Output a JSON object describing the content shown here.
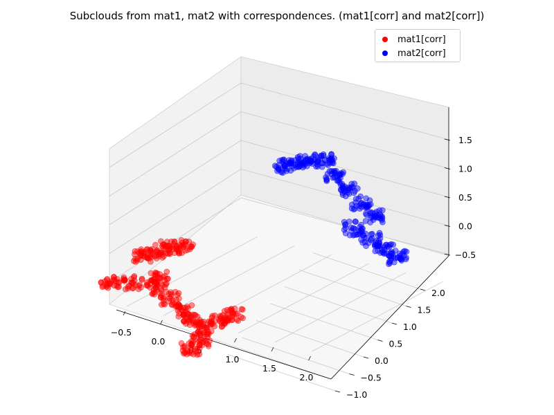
{
  "chart_data": {
    "type": "scatter",
    "title": "Subclouds from mat1, mat2 with correspondences. (mat1[corr] and mat2[corr])",
    "xlabel": "",
    "ylabel": "",
    "zlabel": "",
    "x_ticks": [
      "−0.5",
      "0.0",
      "0.5",
      "1.0",
      "1.5",
      "2.0"
    ],
    "y_ticks": [
      "−1.0",
      "−0.5",
      "0.0",
      "0.5",
      "1.0",
      "1.5",
      "2.0"
    ],
    "z_ticks": [
      "−0.5",
      "0.0",
      "0.5",
      "1.0",
      "1.5"
    ],
    "xlim": [
      -0.6,
      2.1
    ],
    "ylim": [
      -1.1,
      2.3
    ],
    "zlim": [
      -0.6,
      1.9
    ],
    "legend_position": "top-right",
    "grid": true,
    "series": [
      {
        "name": "mat1[corr]",
        "color": "#ff0000",
        "points": [
          [
            -0.15,
            -0.45,
            0.85
          ],
          [
            0.0,
            -0.4,
            0.95
          ],
          [
            0.15,
            -0.35,
            1.05
          ],
          [
            0.3,
            -0.3,
            1.1
          ],
          [
            0.1,
            -0.5,
            0.6
          ],
          [
            0.05,
            -0.5,
            0.4
          ],
          [
            -0.2,
            -0.6,
            0.45
          ],
          [
            -0.45,
            -0.7,
            0.4
          ],
          [
            0.2,
            -0.45,
            0.25
          ],
          [
            0.35,
            -0.4,
            0.05
          ],
          [
            0.45,
            -0.35,
            -0.1
          ],
          [
            0.6,
            -0.3,
            -0.2
          ],
          [
            0.75,
            -0.25,
            -0.05
          ],
          [
            0.9,
            -0.2,
            0.1
          ],
          [
            0.55,
            -0.35,
            -0.4
          ],
          [
            0.45,
            -0.4,
            -0.55
          ]
        ]
      },
      {
        "name": "mat2[corr]",
        "color": "#0000ff",
        "points": [
          [
            0.7,
            1.4,
            1.55
          ],
          [
            0.85,
            1.45,
            1.65
          ],
          [
            1.0,
            1.5,
            1.7
          ],
          [
            1.15,
            1.55,
            1.75
          ],
          [
            1.3,
            1.5,
            1.55
          ],
          [
            1.45,
            1.55,
            1.35
          ],
          [
            1.6,
            1.6,
            1.15
          ],
          [
            1.75,
            1.65,
            0.95
          ],
          [
            1.55,
            1.5,
            0.75
          ],
          [
            1.75,
            1.55,
            0.6
          ],
          [
            1.9,
            1.6,
            0.45
          ],
          [
            2.05,
            1.65,
            0.35
          ]
        ]
      }
    ]
  }
}
